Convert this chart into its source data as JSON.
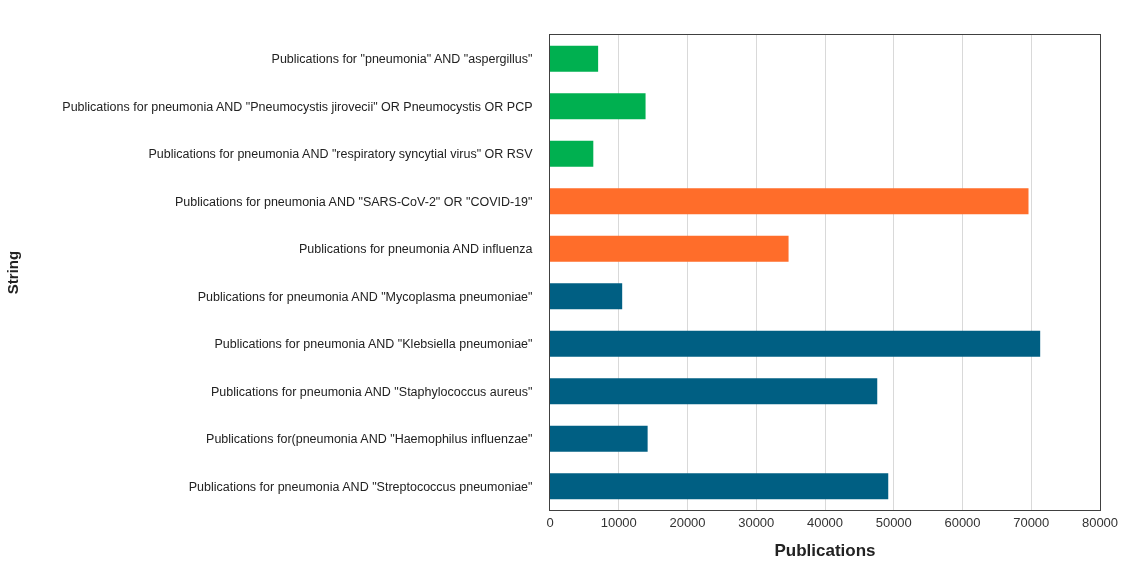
{
  "chart_data": {
    "type": "bar",
    "orientation": "horizontal",
    "xlabel": "Publications",
    "ylabel": "String",
    "categories": [
      "Publications for \"pneumonia\" AND \"aspergillus\"",
      "Publications for pneumonia AND \"Pneumocystis jirovecii\" OR Pneumocystis OR PCP",
      "Publications for pneumonia AND \"respiratory syncytial virus\" OR RSV",
      "Publications for pneumonia AND \"SARS-CoV-2\" OR \"COVID-19\"",
      "Publications for pneumonia AND influenza",
      "Publications for pneumonia AND \"Mycoplasma pneumoniae\"",
      "Publications for pneumonia AND \"Klebsiella pneumoniae\"",
      "Publications for pneumonia AND \"Staphylococcus aureus\"",
      "Publications for(pneumonia AND \"Haemophilus influenzae\"",
      "Publications for pneumonia AND \"Streptococcus pneumoniae\""
    ],
    "values": [
      7000,
      13900,
      6300,
      69600,
      34700,
      10500,
      71300,
      47600,
      14200,
      49200
    ],
    "colors": [
      "#00b050",
      "#00b050",
      "#00b050",
      "#ff6d2a",
      "#ff6d2a",
      "#005f83",
      "#005f83",
      "#005f83",
      "#005f83",
      "#005f83"
    ],
    "xlim": [
      0,
      80000
    ],
    "xticks": [
      0,
      10000,
      20000,
      30000,
      40000,
      50000,
      60000,
      70000,
      80000
    ],
    "grid": "x"
  }
}
